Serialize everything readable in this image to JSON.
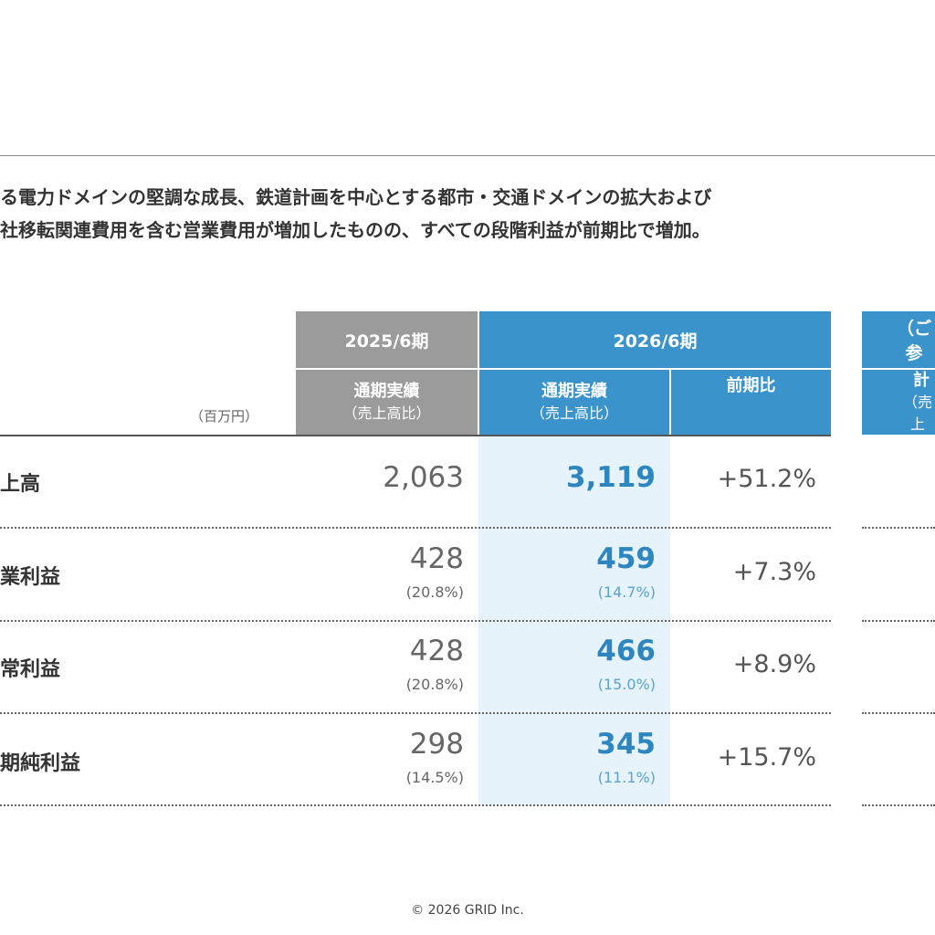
{
  "summary": {
    "line1": "る電力ドメインの堅調な成長、鉄道計画を中心とする都市・交通ドメインの拡大および",
    "line2": "社移転関連費用を含む営業費用が増加したものの、すべての段階利益が前期比で増加。"
  },
  "table": {
    "unit": "（百万円）",
    "col_prev_year": "2025/6期",
    "col_prev_sub": "通期実績",
    "col_prev_sub2": "（売上高比）",
    "col_curr_year": "2026/6期",
    "col_curr_sub": "通期実績",
    "col_curr_sub2": "（売上高比）",
    "col_yoy": "前期比",
    "col_ref_title": "（ご参",
    "col_ref_sub": "計",
    "col_ref_sub2": "（売上",
    "rows": [
      {
        "label": "上高",
        "prev": "2,063",
        "prev_pct": "",
        "curr": "3,119",
        "curr_pct": "",
        "yoy": "+51.2%"
      },
      {
        "label": "業利益",
        "prev": "428",
        "prev_pct": "(20.8%)",
        "curr": "459",
        "curr_pct": "(14.7%)",
        "yoy": "+7.3%"
      },
      {
        "label": "常利益",
        "prev": "428",
        "prev_pct": "(20.8%)",
        "curr": "466",
        "curr_pct": "(15.0%)",
        "yoy": "+8.9%"
      },
      {
        "label": "期純利益",
        "prev": "298",
        "prev_pct": "(14.5%)",
        "curr": "345",
        "curr_pct": "(11.1%)",
        "yoy": "+15.7%"
      }
    ]
  },
  "colors": {
    "header_gray": "#9b9b9b",
    "header_blue": "#3a93cb",
    "value_blue": "#2e86c1",
    "highlight": "#e7f3fa"
  },
  "footer": {
    "copyright": "© 2026 GRID Inc."
  }
}
